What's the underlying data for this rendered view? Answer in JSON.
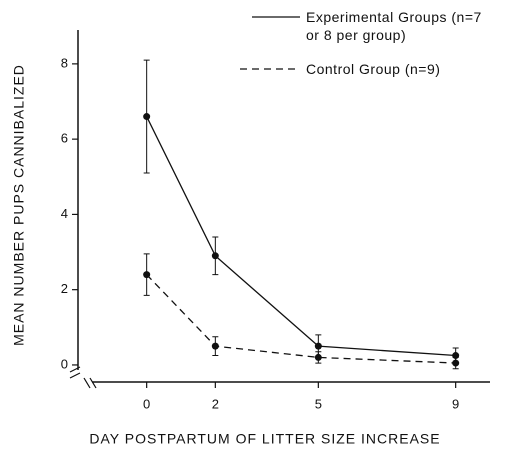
{
  "chart_data": {
    "type": "line",
    "xlabel": "DAY POSTPARTUM OF LITTER SIZE INCREASE",
    "ylabel": "MEAN NUMBER PUPS CANNIBALIZED",
    "x": [
      0,
      2,
      5,
      9
    ],
    "series": [
      {
        "name": "Experimental Groups (n=7 or 8 per group)",
        "color": "#111111",
        "dash": "solid",
        "values": [
          6.6,
          2.9,
          0.5,
          0.25
        ],
        "errors": [
          1.5,
          0.5,
          0.3,
          0.2
        ]
      },
      {
        "name": "Control Group (n=9)",
        "color": "#111111",
        "dash": "dashed",
        "values": [
          2.4,
          0.5,
          0.2,
          0.05
        ],
        "errors": [
          0.55,
          0.25,
          0.15,
          0.15
        ]
      }
    ],
    "xlim": [
      -2,
      10
    ],
    "ylim": [
      -0.4,
      8.9
    ],
    "xticks": [
      0,
      2,
      5,
      9
    ],
    "yticks": [
      0,
      2,
      4,
      6,
      8
    ],
    "grid": false,
    "legend": "upper right"
  }
}
